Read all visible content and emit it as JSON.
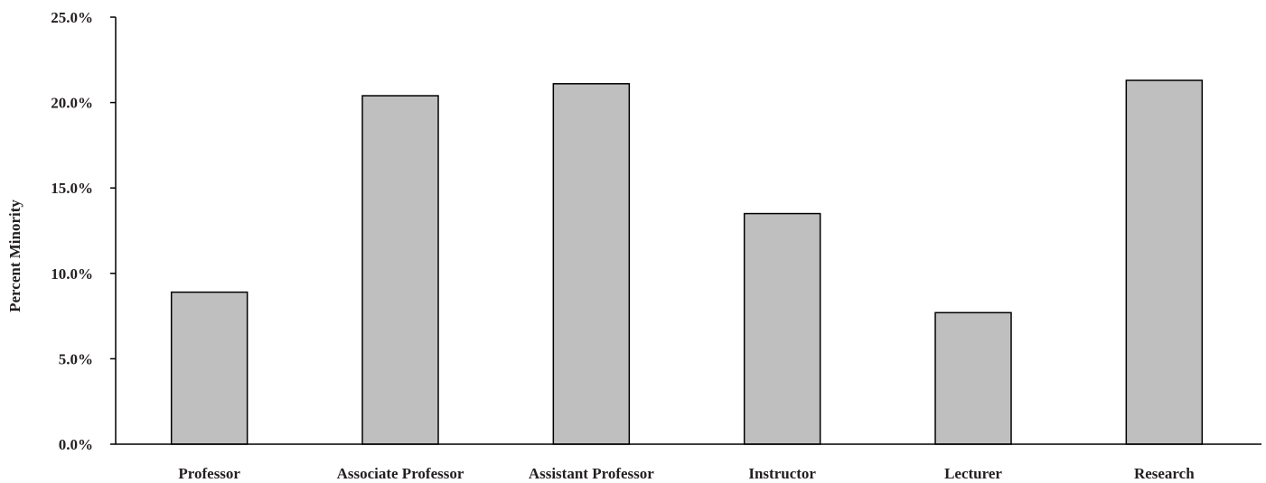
{
  "chart_data": {
    "type": "bar",
    "categories": [
      "Professor",
      "Associate Professor",
      "Assistant Professor",
      "Instructor",
      "Lecturer",
      "Research"
    ],
    "values": [
      8.9,
      20.4,
      21.1,
      13.5,
      7.7,
      21.3
    ],
    "title": "",
    "xlabel": "",
    "ylabel": "Percent Minority",
    "ylim": [
      0,
      25
    ],
    "yticks": [
      0,
      5,
      10,
      15,
      20,
      25
    ],
    "ytick_labels": [
      "0.0%",
      "5.0%",
      "10.0%",
      "15.0%",
      "20.0%",
      "25.0%"
    ],
    "grid": false,
    "legend": "none",
    "colors": {
      "bar_fill": "#bfbfbf",
      "bar_stroke": "#000000",
      "axis": "#000000"
    }
  }
}
